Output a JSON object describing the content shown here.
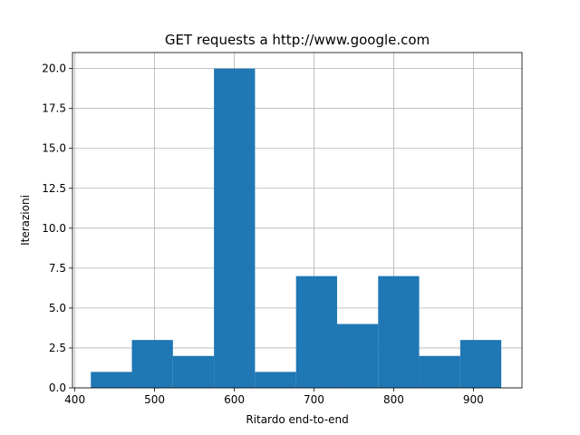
{
  "chart_data": {
    "type": "bar",
    "title": "GET requests a http://www.google.com",
    "xlabel": "Ritardo end-to-end",
    "ylabel": "Iterazioni",
    "bin_edges": [
      420,
      471.5,
      523,
      574.5,
      626,
      677.5,
      729,
      780.5,
      832,
      883.5,
      935
    ],
    "values": [
      1,
      3,
      2,
      20,
      1,
      7,
      4,
      7,
      2,
      3
    ],
    "xlim": [
      397,
      961
    ],
    "ylim": [
      0,
      21
    ],
    "xticks": [
      400,
      500,
      600,
      700,
      800,
      900
    ],
    "xtick_labels": [
      "400",
      "500",
      "600",
      "700",
      "800",
      "900"
    ],
    "yticks": [
      0,
      2.5,
      5,
      7.5,
      10,
      12.5,
      15,
      17.5,
      20
    ],
    "ytick_labels": [
      "0.0",
      "2.5",
      "5.0",
      "7.5",
      "10.0",
      "12.5",
      "15.0",
      "17.5",
      "20.0"
    ],
    "grid": true,
    "bar_color": "#1f77b4"
  }
}
